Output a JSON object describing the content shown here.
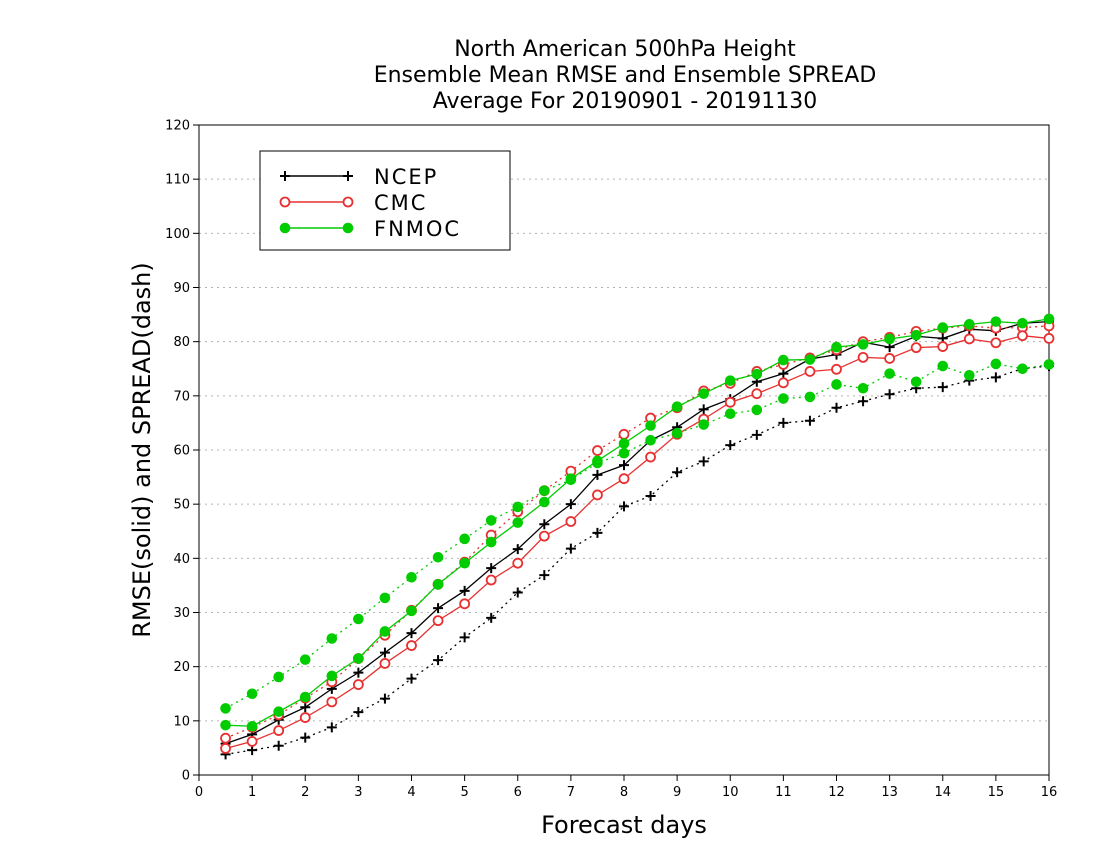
{
  "chart_data": {
    "type": "line",
    "title_lines": [
      "North American 500hPa Height",
      "Ensemble Mean RMSE and Ensemble SPREAD",
      "Average For 20190901 - 20191130"
    ],
    "xlabel": "Forecast days",
    "ylabel": "RMSE(solid) and SPREAD(dash)",
    "xlim": [
      0,
      16
    ],
    "ylim": [
      0,
      120
    ],
    "xticks": [
      0,
      1,
      2,
      3,
      4,
      5,
      6,
      7,
      8,
      9,
      10,
      11,
      12,
      13,
      14,
      15,
      16
    ],
    "yticks": [
      0,
      10,
      20,
      30,
      40,
      50,
      60,
      70,
      80,
      90,
      100,
      110,
      120
    ],
    "grid": true,
    "legend_position": "top-left",
    "x": [
      0.5,
      1.0,
      1.5,
      2.0,
      2.5,
      3.0,
      3.5,
      4.0,
      4.5,
      5.0,
      5.5,
      6.0,
      6.5,
      7.0,
      7.5,
      8.0,
      8.5,
      9.0,
      9.5,
      10.0,
      10.5,
      11.0,
      11.5,
      12.0,
      12.5,
      13.0,
      13.5,
      14.0,
      14.5,
      15.0,
      15.5,
      16.0
    ],
    "series": [
      {
        "name": "NCEP",
        "color": "#000000",
        "marker": "plus",
        "rmse": [
          5.8,
          7.5,
          10.2,
          12.5,
          15.9,
          18.9,
          22.6,
          26.2,
          30.8,
          34.0,
          38.2,
          41.7,
          46.3,
          50.0,
          55.4,
          57.2,
          61.8,
          64.2,
          67.5,
          69.4,
          72.6,
          74.1,
          76.8,
          77.6,
          79.9,
          79.0,
          81.0,
          80.6,
          82.3,
          82.0,
          83.4,
          83.7
        ],
        "spread": [
          3.8,
          4.6,
          5.4,
          6.9,
          8.8,
          11.6,
          14.1,
          17.8,
          21.2,
          25.4,
          29.0,
          33.7,
          36.9,
          41.8,
          44.7,
          49.6,
          51.5,
          55.9,
          57.9,
          60.9,
          62.8,
          65.0,
          65.4,
          67.8,
          69.0,
          70.3,
          71.4,
          71.6,
          72.8,
          73.4,
          75.0,
          75.5
        ]
      },
      {
        "name": "CMC",
        "color": "#e83030",
        "marker": "open-circle",
        "rmse": [
          4.9,
          6.2,
          8.2,
          10.6,
          13.5,
          16.7,
          20.6,
          23.9,
          28.5,
          31.6,
          36.0,
          39.1,
          44.1,
          46.8,
          51.7,
          54.7,
          58.7,
          62.9,
          65.7,
          68.8,
          70.4,
          72.4,
          74.5,
          74.9,
          77.1,
          76.9,
          78.9,
          79.1,
          80.5,
          79.8,
          81.1,
          80.6
        ],
        "spread": [
          6.8,
          8.8,
          11.1,
          14.2,
          17.2,
          21.5,
          25.8,
          30.4,
          35.2,
          39.3,
          44.3,
          48.6,
          52.5,
          56.1,
          59.9,
          62.9,
          65.9,
          67.8,
          70.9,
          72.3,
          74.5,
          75.8,
          77.0,
          78.5,
          80.0,
          80.8,
          81.9,
          82.5,
          82.9,
          82.5,
          82.6,
          82.9
        ]
      },
      {
        "name": "FNMOC",
        "color": "#00cc00",
        "marker": "filled-circle",
        "rmse": [
          9.2,
          9.0,
          11.7,
          14.4,
          18.3,
          21.5,
          26.5,
          30.3,
          35.2,
          39.1,
          43.0,
          46.6,
          50.4,
          54.7,
          58.0,
          61.2,
          64.5,
          68.0,
          70.4,
          72.8,
          74.0,
          76.6,
          76.7,
          79.0,
          79.5,
          80.5,
          81.2,
          82.6,
          83.2,
          83.7,
          83.4,
          84.2
        ],
        "spread": [
          12.3,
          15.0,
          18.1,
          21.3,
          25.2,
          28.8,
          32.7,
          36.5,
          40.2,
          43.6,
          47.0,
          49.5,
          52.5,
          54.5,
          57.6,
          59.4,
          61.8,
          63.1,
          64.7,
          66.7,
          67.4,
          69.5,
          69.8,
          72.1,
          71.4,
          74.1,
          72.6,
          75.5,
          73.8,
          75.9,
          75.0,
          75.8
        ]
      }
    ]
  }
}
